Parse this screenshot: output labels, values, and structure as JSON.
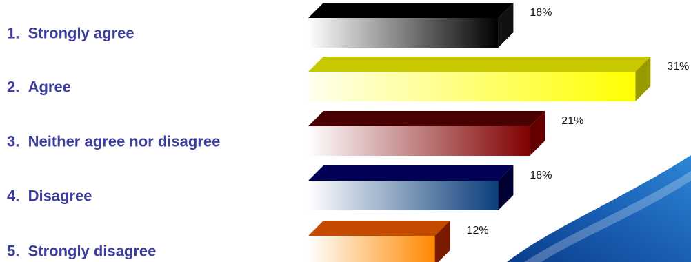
{
  "chart_data": {
    "type": "bar",
    "orientation": "horizontal",
    "style": "3d",
    "categories": [
      "1.  Strongly agree",
      "2.  Agree",
      "3.  Neither agree nor disagree",
      "4.  Disagree",
      "5.  Strongly disagree"
    ],
    "values": [
      18,
      31,
      21,
      18,
      12
    ],
    "value_labels": [
      "18%",
      "31%",
      "21%",
      "18%",
      "12%"
    ],
    "value_unit": "%",
    "title": "",
    "xlabel": "",
    "ylabel": "",
    "grid": false,
    "legend": "none",
    "colors": [
      {
        "front_light": "#ffffff",
        "front_dark": "#000000",
        "top": "#000000",
        "side": "#111111"
      },
      {
        "front_light": "#ffffee",
        "front_dark": "#ffff00",
        "top": "#c8c800",
        "side": "#999900"
      },
      {
        "front_light": "#ffffff",
        "front_dark": "#800000",
        "top": "#4a0000",
        "side": "#660000"
      },
      {
        "front_light": "#ffffff",
        "front_dark": "#0a3d7a",
        "top": "#000055",
        "side": "#000033"
      },
      {
        "front_light": "#ffffff",
        "front_dark": "#ff8800",
        "top": "#c44a00",
        "side": "#7a1a00"
      }
    ]
  },
  "decor": {
    "swoosh_colors": [
      "#1a5fb4",
      "#2e86d6",
      "#0a3d8a"
    ]
  }
}
